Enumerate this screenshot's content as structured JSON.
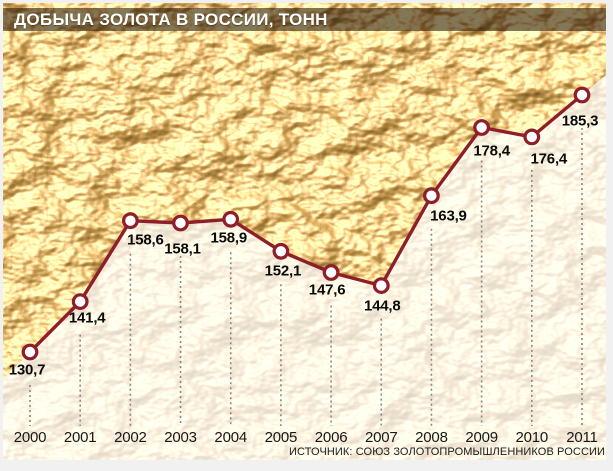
{
  "header": {
    "title": "ДОБЫЧА ЗОЛОТА В РОССИИ, ТОНН"
  },
  "footer": {
    "source": "ИСТОЧНИК: СОЮЗ ЗОЛОТОПРОМЫШЛЕННИКОВ РОССИИ"
  },
  "colors": {
    "line": "#8e1f2a",
    "marker_fill": "#ffffff",
    "fade_overlay": "#ffffff",
    "title_bar": "rgba(40,23,9,0.58)",
    "gold_mid": "#e6b153",
    "gold_highlight": "#fff3cf",
    "grid_dots": "#6e6e6e",
    "label_text": "#0a0a0a"
  },
  "chart_data": {
    "type": "line",
    "title": "ДОБЫЧА ЗОЛОТА В РОССИИ, ТОНН",
    "categories": [
      "2000",
      "2001",
      "2002",
      "2003",
      "2004",
      "2005",
      "2006",
      "2007",
      "2008",
      "2009",
      "2010",
      "2011"
    ],
    "values": [
      130.7,
      141.4,
      158.6,
      158.1,
      158.9,
      152.1,
      147.6,
      144.8,
      163.9,
      178.4,
      176.4,
      185.3
    ],
    "point_labels": [
      "130,7",
      "141,4",
      "158,6",
      "158,1",
      "158,9",
      "152,1",
      "147,6",
      "144,8",
      "163,9",
      "178,4",
      "176,4",
      "185,3"
    ],
    "xlabel": "",
    "ylabel": "",
    "units": "тонн",
    "ylim": [
      125,
      192
    ],
    "grid": "vertical-dotted",
    "legend": "none",
    "line_color": "#8e1f2a",
    "source": "ИСТОЧНИК: СОЮЗ ЗОЛОТОПРОМЫШЛЕННИКОВ РОССИИ"
  }
}
